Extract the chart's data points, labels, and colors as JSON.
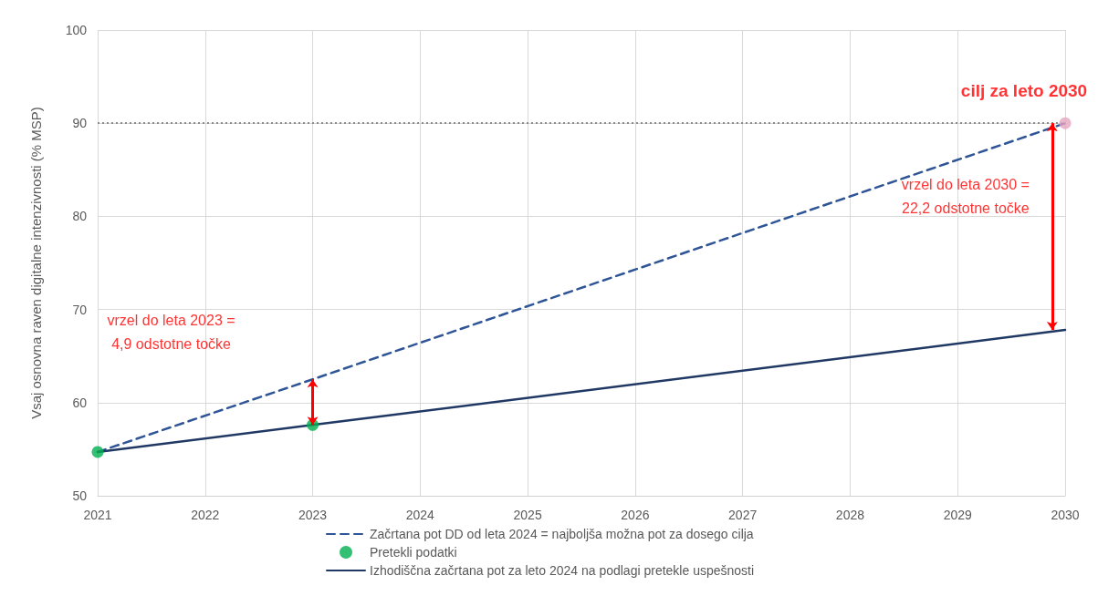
{
  "chart_data": {
    "type": "line",
    "ylabel": "Vsaj osnovna raven digitalne intenzivnosti (% MSP)",
    "xlim": [
      2021,
      2030
    ],
    "xticks": [
      2021,
      2022,
      2023,
      2024,
      2025,
      2026,
      2027,
      2028,
      2029,
      2030
    ],
    "ylim": [
      50,
      100
    ],
    "yticks": [
      50,
      60,
      70,
      80,
      90,
      100
    ],
    "grid": true,
    "legend": "bottom",
    "series": [
      {
        "name": "Začrtana pot DD od leta 2024 = najboljša možna pot za dosego cilja",
        "line_style": "dashed",
        "marker": "none",
        "color": "#2f5597",
        "x": [
          2021,
          2023,
          2030
        ],
        "values": [
          54.7,
          62.5,
          90
        ]
      },
      {
        "name": "Pretekli podatki",
        "type": "scatter",
        "marker": "circle",
        "color": "#00b050",
        "x": [
          2021,
          2023
        ],
        "values": [
          54.7,
          57.6
        ]
      },
      {
        "name": "Izhodiščna začrtana pot za leto 2024 na podlagi pretekle uspešnosti",
        "line_style": "solid",
        "marker": "none",
        "color": "#203864",
        "x": [
          2021,
          2023,
          2030
        ],
        "values": [
          54.7,
          57.6,
          67.8
        ]
      },
      {
        "type": "scatter",
        "marker": "circle",
        "color": "#e6a5c0",
        "x": [
          2030
        ],
        "values": [
          90
        ]
      }
    ],
    "ref_lines": [
      {
        "axis": "y",
        "value": 90,
        "color": "#8c8c8c",
        "line_style": "dotted"
      }
    ],
    "annotations": [
      "vrzel do leta 2023 =\n4,9 odstotne točke",
      "vrzel do leta 2030 =\n22,2 odstotne točke",
      {
        "text": "cilj za leto 2030",
        "x": 2030,
        "y": 90
      }
    ]
  }
}
